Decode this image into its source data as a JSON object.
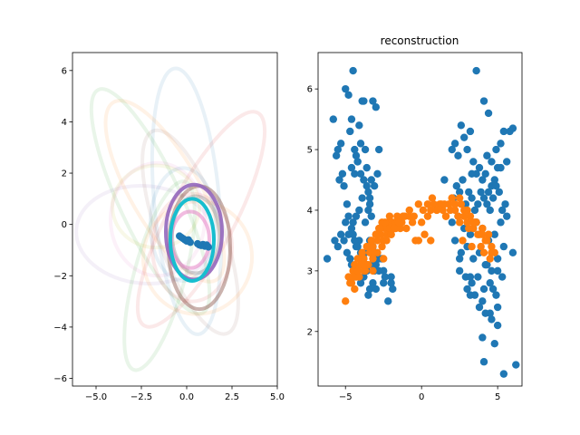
{
  "chart_data": [
    {
      "type": "ellipse-overlay",
      "title": "",
      "xlabel": "",
      "ylabel": "",
      "xlim": [
        -6.3,
        5.0
      ],
      "ylim": [
        -6.3,
        6.7
      ],
      "xticks": [
        -5.0,
        -2.5,
        0.0,
        2.5,
        5.0
      ],
      "xtick_labels": [
        "−5.0",
        "−2.5",
        "0.0",
        "2.5",
        "5.0"
      ],
      "yticks": [
        -6,
        -4,
        -2,
        0,
        2,
        4,
        6
      ],
      "ytick_labels": [
        "−6",
        "−4",
        "−2",
        "0",
        "2",
        "4",
        "6"
      ],
      "grid": false,
      "ellipses": [
        {
          "cx": 0.0,
          "cy": 0.9,
          "rx": 1.8,
          "ry": 5.2,
          "angle": 5,
          "color": "#1f77b4",
          "alpha": 0.1
        },
        {
          "cx": -1.2,
          "cy": 1.3,
          "rx": 1.9,
          "ry": 4.0,
          "angle": 30,
          "color": "#ff7f0e",
          "alpha": 0.1
        },
        {
          "cx": -2.0,
          "cy": 0.9,
          "rx": 1.7,
          "ry": 4.8,
          "angle": 25,
          "color": "#2ca02c",
          "alpha": 0.1
        },
        {
          "cx": 0.8,
          "cy": 0.2,
          "rx": 1.8,
          "ry": 4.7,
          "angle": -28,
          "color": "#d62728",
          "alpha": 0.1
        },
        {
          "cx": -2.3,
          "cy": -0.4,
          "rx": 3.8,
          "ry": 1.9,
          "angle": -5,
          "color": "#9467bd",
          "alpha": 0.1
        },
        {
          "cx": 0.2,
          "cy": -0.3,
          "rx": 1.8,
          "ry": 4.2,
          "angle": 20,
          "color": "#8c564b",
          "alpha": 0.1
        },
        {
          "cx": -1.6,
          "cy": 0.2,
          "rx": 2.6,
          "ry": 2.2,
          "angle": 0,
          "color": "#e377c2",
          "alpha": 0.1
        },
        {
          "cx": -1.5,
          "cy": -2.0,
          "rx": 1.4,
          "ry": 3.8,
          "angle": -15,
          "color": "#2ca02c",
          "alpha": 0.1
        },
        {
          "cx": -1.7,
          "cy": 0.7,
          "rx": 2.4,
          "ry": 1.6,
          "angle": 0,
          "color": "#bcbd22",
          "alpha": 0.1
        },
        {
          "cx": 0.6,
          "cy": -1.3,
          "rx": 3.0,
          "ry": 2.2,
          "angle": -10,
          "color": "#ff7f0e",
          "alpha": 0.1
        },
        {
          "cx": -0.2,
          "cy": 0.0,
          "rx": 1.8,
          "ry": 2.2,
          "angle": 0,
          "color": "#1f77b4",
          "alpha": 0.1
        },
        {
          "cx": 0.3,
          "cy": -0.9,
          "rx": 2.2,
          "ry": 2.1,
          "angle": 0,
          "color": "#d62728",
          "alpha": 0.1
        },
        {
          "cx": 0.7,
          "cy": -0.9,
          "rx": 1.7,
          "ry": 2.4,
          "angle": 0,
          "color": "#8c564b",
          "alpha": 0.45
        },
        {
          "cx": 0.5,
          "cy": -0.4,
          "rx": 1.3,
          "ry": 1.5,
          "angle": 0,
          "color": "#7f7f7f",
          "alpha": 0.35
        },
        {
          "cx": 0.4,
          "cy": -0.3,
          "rx": 1.55,
          "ry": 1.85,
          "angle": 0,
          "color": "#9467bd",
          "alpha": 0.9
        },
        {
          "cx": 0.2,
          "cy": -0.6,
          "rx": 1.05,
          "ry": 1.1,
          "angle": 0,
          "color": "#e377c2",
          "alpha": 0.5
        },
        {
          "cx": 0.3,
          "cy": -0.6,
          "rx": 1.2,
          "ry": 1.6,
          "angle": 0,
          "color": "#17becf",
          "alpha": 1.0
        }
      ],
      "points": {
        "color": "#1f77b4",
        "x": [
          -0.4,
          -0.3,
          -0.2,
          -0.1,
          0.0,
          0.1,
          0.2,
          0.6,
          0.7,
          0.8,
          0.9,
          1.0,
          1.1,
          1.2
        ],
        "y": [
          -0.45,
          -0.5,
          -0.55,
          -0.6,
          -0.65,
          -0.6,
          -0.7,
          -0.75,
          -0.8,
          -0.82,
          -0.78,
          -0.85,
          -0.8,
          -0.88
        ]
      }
    },
    {
      "type": "scatter",
      "title": "reconstruction",
      "xlabel": "",
      "ylabel": "",
      "xlim": [
        -6.8,
        6.6
      ],
      "ylim": [
        1.1,
        6.6
      ],
      "xticks": [
        -5,
        0,
        5
      ],
      "xtick_labels": [
        "−5",
        "0",
        "5"
      ],
      "yticks": [
        2,
        3,
        4,
        5,
        6
      ],
      "ytick_labels": [
        "2",
        "3",
        "4",
        "5",
        "6"
      ],
      "grid": false,
      "series": [
        {
          "color": "#1f77b4",
          "x": [
            -6.2,
            -5.8,
            -5.5,
            -5.3,
            -5.2,
            -5.0,
            -4.8,
            -4.7,
            -4.6,
            -4.5,
            -4.4,
            -4.3,
            -4.2,
            -4.1,
            -4.0,
            -3.9,
            -3.8,
            -3.7,
            -3.6,
            -3.5,
            -3.4,
            -3.3,
            -3.2,
            -3.0,
            -2.8,
            -2.5,
            -2.2,
            -2.0,
            -1.9,
            -5.6,
            -5.4,
            -5.1,
            -4.9,
            -4.6,
            -4.4,
            -4.2,
            -4.0,
            -3.8,
            -3.6,
            -3.4,
            -3.1,
            -2.9,
            -4.8,
            -4.5,
            -4.3,
            -4.1,
            -3.9,
            -3.7,
            -3.5,
            -3.3,
            -5.7,
            -5.5,
            -5.3,
            -5.1,
            -4.9,
            -4.7,
            -4.5,
            -4.3,
            -4.1,
            -3.9,
            -3.7,
            -3.5,
            -3.3,
            -3.1,
            -4.6,
            -4.4,
            -4.2,
            -4.0,
            -3.8,
            -3.6,
            -3.4,
            -3.2,
            -3.0,
            -2.8,
            -2.6,
            -2.4,
            -5.0,
            -4.8,
            -4.6,
            -4.4,
            -4.2,
            -4.0,
            -3.8,
            -3.6,
            -3.4,
            -3.2,
            -3.0,
            -2.8,
            -3.5,
            -3.0,
            -2.5,
            -2.0,
            1.5,
            2.0,
            2.2,
            2.4,
            2.6,
            2.8,
            3.0,
            3.2,
            3.4,
            3.6,
            3.8,
            4.0,
            4.2,
            4.4,
            4.6,
            4.8,
            5.0,
            5.2,
            5.4,
            5.6,
            5.8,
            6.0,
            2.1,
            2.3,
            2.5,
            2.7,
            2.9,
            3.1,
            3.3,
            3.5,
            3.7,
            3.9,
            4.1,
            4.3,
            4.5,
            4.7,
            4.9,
            5.1,
            5.3,
            5.5,
            2.0,
            2.4,
            2.8,
            3.2,
            3.6,
            4.0,
            4.4,
            4.8,
            5.2,
            5.6,
            6.0,
            2.2,
            2.6,
            3.0,
            3.4,
            3.8,
            4.2,
            4.6,
            5.0,
            5.4,
            2.5,
            2.9,
            3.3,
            3.7,
            4.1,
            4.5,
            4.9,
            5.3,
            3.0,
            3.5,
            4.0,
            4.5,
            5.0,
            3.2,
            3.8,
            4.2,
            4.6,
            5.0,
            4.0,
            4.3,
            4.6,
            4.9,
            5.2,
            3.3,
            3.6,
            4.1,
            4.4,
            4.8,
            5.4,
            6.2,
            4.1,
            2.5,
            3.4,
            4.3,
            5.0,
            3.2,
            4.7
          ],
          "y": [
            3.2,
            5.5,
            5.0,
            5.1,
            4.6,
            6.0,
            5.9,
            5.3,
            5.5,
            6.3,
            5.0,
            4.9,
            4.8,
            5.4,
            5.1,
            5.8,
            5.8,
            5.0,
            4.7,
            4.3,
            4.1,
            4.5,
            5.8,
            5.7,
            5.0,
            3.0,
            2.5,
            2.8,
            2.7,
            4.9,
            4.5,
            4.4,
            4.1,
            4.7,
            4.6,
            4.8,
            4.6,
            4.5,
            4.4,
            4.2,
            4.4,
            4.6,
            3.9,
            3.8,
            3.9,
            4.0,
            4.2,
            3.8,
            4.0,
            3.9,
            3.5,
            3.4,
            3.6,
            3.5,
            3.3,
            3.2,
            3.6,
            3.4,
            3.5,
            3.2,
            3.3,
            3.4,
            3.1,
            3.0,
            3.1,
            2.9,
            3.0,
            2.8,
            2.9,
            3.0,
            2.7,
            2.8,
            3.1,
            3.0,
            3.2,
            2.9,
            3.8,
            3.6,
            3.7,
            3.5,
            3.4,
            3.3,
            3.2,
            3.1,
            3.5,
            3.4,
            3.3,
            3.2,
            2.6,
            2.7,
            2.8,
            2.9,
            4.5,
            5.0,
            5.1,
            4.9,
            5.4,
            5.2,
            5.0,
            5.3,
            4.8,
            4.6,
            4.7,
            4.5,
            4.6,
            4.3,
            4.4,
            4.5,
            4.7,
            5.1,
            5.3,
            4.8,
            5.3,
            5.35,
            4.2,
            4.4,
            4.3,
            4.5,
            4.1,
            4.3,
            4.2,
            4.0,
            4.1,
            4.3,
            4.2,
            4.1,
            4.0,
            4.2,
            4.4,
            4.3,
            4.0,
            4.1,
            3.8,
            3.9,
            3.7,
            3.6,
            3.8,
            3.7,
            3.5,
            3.6,
            3.8,
            3.9,
            3.3,
            3.5,
            3.3,
            3.4,
            3.2,
            3.3,
            3.1,
            3.0,
            3.2,
            3.4,
            3.0,
            2.9,
            2.8,
            2.9,
            2.7,
            2.8,
            2.6,
            2.9,
            2.7,
            2.6,
            2.5,
            2.3,
            2.4,
            2.6,
            2.4,
            2.3,
            2.2,
            2.1,
            1.9,
            4.9,
            4.8,
            5.0,
            4.7,
            4.6,
            6.3,
            5.8,
            5.6,
            1.8,
            1.3,
            1.45,
            1.5,
            3.2,
            3.7,
            3.1,
            3.0,
            2.9,
            2.7
          ],
          "name": ""
        },
        {
          "color": "#ff7f0e",
          "x": [
            -5.0,
            -4.8,
            -4.6,
            -4.5,
            -4.4,
            -4.3,
            -4.2,
            -4.1,
            -4.0,
            -3.9,
            -3.8,
            -3.7,
            -3.6,
            -3.5,
            -3.4,
            -3.3,
            -3.2,
            -3.1,
            -3.0,
            -2.9,
            -2.8,
            -2.7,
            -2.6,
            -2.5,
            -2.4,
            -2.3,
            -2.2,
            -2.1,
            -2.0,
            -1.9,
            -1.8,
            -1.7,
            -1.6,
            -1.5,
            -1.4,
            -1.3,
            -1.2,
            -1.0,
            -0.8,
            -0.6,
            -0.4,
            -0.2,
            0.0,
            0.2,
            0.4,
            0.6,
            0.8,
            1.0,
            1.2,
            1.4,
            1.6,
            1.8,
            2.0,
            2.2,
            2.4,
            2.6,
            2.8,
            3.0,
            3.2,
            3.4,
            3.6,
            3.8,
            4.0,
            4.2,
            4.4,
            4.6,
            4.8,
            -4.7,
            -4.4,
            -4.1,
            -3.8,
            -3.5,
            -3.2,
            -2.9,
            -2.6,
            -2.3,
            -2.0,
            -1.7,
            -1.4,
            -1.1,
            -0.8,
            -0.5,
            -0.2,
            0.1,
            0.4,
            0.7,
            1.0,
            1.3,
            1.6,
            1.9,
            2.2,
            2.5,
            2.8,
            3.1,
            3.4,
            3.7,
            4.0,
            4.3,
            4.6,
            -4.2,
            -3.9,
            -3.6,
            -3.3,
            -3.0,
            -2.7,
            -2.4,
            -2.1,
            -1.8,
            -1.5,
            -1.2,
            0.6,
            1.5,
            2.0,
            2.5,
            3.0,
            3.5,
            4.0,
            4.5,
            3.3,
            2.7,
            4.1,
            3.9,
            -4.5,
            -3.8,
            -3.2,
            -2.5
          ],
          "y": [
            2.5,
            2.9,
            2.8,
            3.0,
            3.1,
            2.9,
            3.0,
            3.2,
            3.1,
            3.3,
            3.2,
            3.0,
            3.1,
            3.4,
            3.3,
            3.5,
            3.4,
            3.3,
            3.6,
            3.5,
            3.7,
            3.6,
            3.8,
            3.5,
            3.7,
            3.6,
            3.8,
            3.7,
            3.6,
            3.8,
            3.7,
            3.8,
            3.9,
            3.8,
            3.7,
            3.8,
            3.9,
            3.7,
            3.9,
            3.8,
            3.5,
            3.5,
            3.8,
            3.6,
            3.9,
            4.0,
            4.1,
            4.0,
            4.1,
            4.0,
            3.9,
            4.1,
            4.2,
            4.0,
            3.9,
            4.1,
            4.0,
            3.8,
            3.9,
            3.7,
            3.8,
            3.6,
            3.7,
            3.5,
            3.6,
            3.4,
            3.3,
            2.8,
            2.7,
            2.9,
            3.0,
            3.1,
            3.2,
            3.3,
            3.4,
            3.5,
            3.6,
            3.7,
            3.8,
            3.9,
            4.0,
            3.9,
            4.1,
            4.0,
            4.1,
            4.2,
            4.0,
            4.1,
            3.9,
            4.0,
            4.1,
            3.8,
            3.9,
            3.7,
            3.8,
            3.6,
            3.7,
            3.5,
            3.3,
            3.2,
            3.3,
            3.4,
            3.5,
            3.6,
            3.7,
            3.8,
            3.9,
            3.7,
            3.8,
            3.9,
            3.5,
            4.1,
            4.2,
            4.2,
            4.0,
            3.8,
            3.6,
            3.2,
            3.4,
            3.5,
            3.3,
            3.4,
            2.9,
            3.1,
            3.0,
            3.2
          ],
          "name": ""
        }
      ]
    }
  ]
}
